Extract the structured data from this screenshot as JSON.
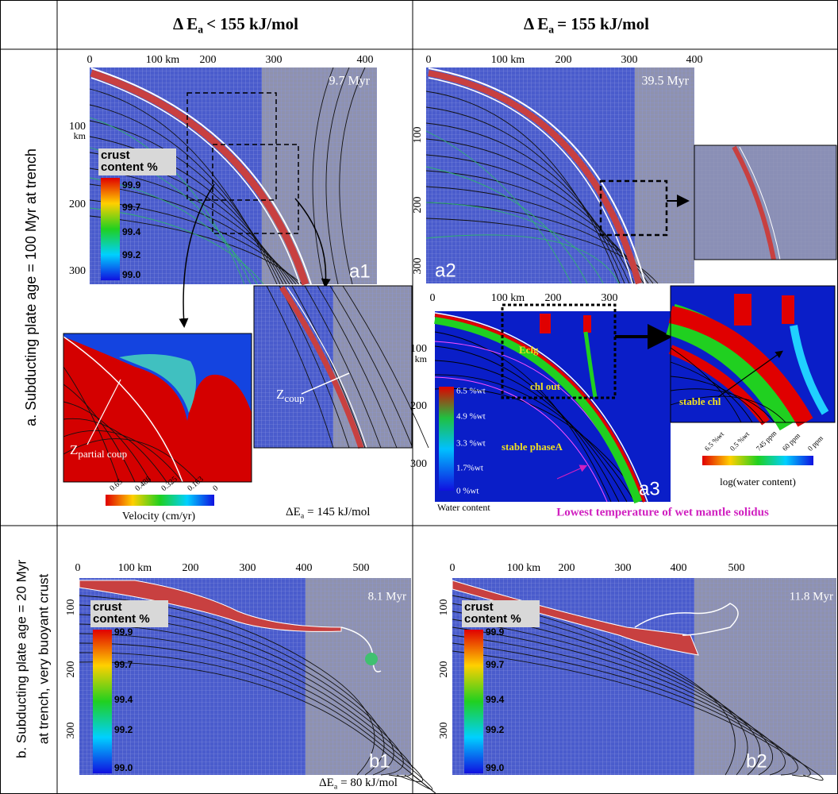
{
  "header": {
    "col1": {
      "delta": "Δ E",
      "sub": "a",
      "rest": "< 155 kJ/mol"
    },
    "col2": {
      "delta": "Δ E",
      "sub": "a",
      "rest": "= 155 kJ/mol"
    }
  },
  "rows": {
    "a": {
      "label": "a. Subducting plate age = 100 Myr at trench"
    },
    "b": {
      "label_lines": [
        "b. Subducting plate age = 20 Myr",
        "at trench, very buoyant crust"
      ]
    }
  },
  "panels": {
    "a1": {
      "label": "a1",
      "time": "9.7 Myr",
      "xticks": [
        "0",
        "100 km",
        "200",
        "300",
        "400"
      ],
      "yticks": [
        "100",
        "200",
        "300"
      ],
      "yunit": "km",
      "colorbar": {
        "title": [
          "crust",
          "content %"
        ],
        "ticks": [
          "99.9",
          "99.7",
          "99.4",
          "99.2",
          "99.0"
        ]
      },
      "inset_left": {
        "z": "Z",
        "sub": "partial coup",
        "colorbar_ticks": [
          "0.65",
          "0.488",
          "0.325",
          "0.163",
          "0"
        ],
        "colorbar_title": "Velocity (cm/yr)"
      },
      "inset_right": {
        "z": "Z",
        "sub": "coup"
      },
      "note": {
        "delta": "ΔE",
        "sub": "a",
        "rest": "= 145 kJ/mol"
      }
    },
    "a2": {
      "label": "a2",
      "time": "39.5 Myr",
      "xticks": [
        "0",
        "100 km",
        "200",
        "300",
        "400"
      ],
      "yticks": [
        "100",
        "200",
        "300"
      ]
    },
    "a3": {
      "label": "a3",
      "xticks": [
        "0",
        "100 km",
        "200",
        "300"
      ],
      "yticks": [
        "100",
        "200",
        "300"
      ],
      "yunit": "km",
      "annotations": [
        "Eclg",
        "chl out",
        "stable phaseA"
      ],
      "colorbar": {
        "ticks": [
          "6.5 %wt",
          "4.9 %wt",
          "3.3 %wt",
          "1.7%wt",
          "0 %wt"
        ],
        "title": "Water content"
      },
      "inset": {
        "annotation": "stable chl",
        "colorbar_ticks": [
          "6.5 %wt",
          "0.5 %wt",
          "745 ppm",
          "60 ppm",
          "0 ppm"
        ],
        "colorbar_title": "log(water content)"
      },
      "solidus": "Lowest temperature of wet mantle solidus"
    },
    "b1": {
      "label": "b1",
      "time": "8.1 Myr",
      "xticks": [
        "0",
        "100 km",
        "200",
        "300",
        "400",
        "500"
      ],
      "yticks": [
        "100",
        "200",
        "300"
      ],
      "colorbar": {
        "title": [
          "crust",
          "content %"
        ],
        "ticks": [
          "99.9",
          "99.7",
          "99.4",
          "99.2",
          "99.0"
        ]
      },
      "note": {
        "delta": "ΔE",
        "sub": "a",
        "rest": "= 80 kJ/mol"
      }
    },
    "b2": {
      "label": "b2",
      "time": "11.8 Myr",
      "xticks": [
        "0",
        "100 km",
        "200",
        "300",
        "400",
        "500"
      ],
      "yticks": [
        "100",
        "200",
        "300"
      ],
      "colorbar": {
        "title": [
          "crust",
          "content %"
        ],
        "ticks": [
          "99.9",
          "99.7",
          "99.4",
          "99.2",
          "99.0"
        ]
      }
    }
  }
}
